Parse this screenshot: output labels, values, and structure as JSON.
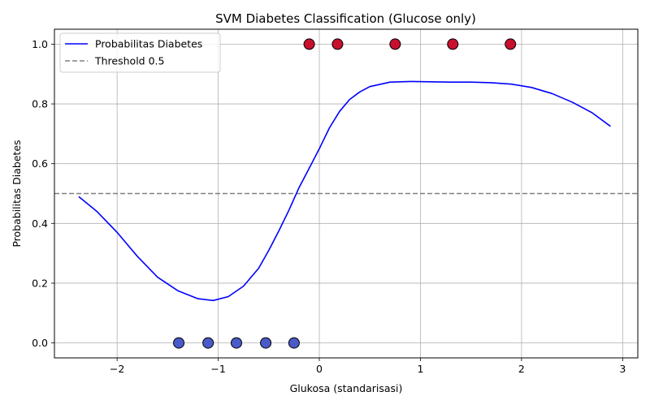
{
  "chart_data": {
    "type": "line",
    "title": "SVM Diabetes Classification (Glucose only)",
    "xlabel": "Glukosa (standarisasi)",
    "ylabel": "Probabilitas Diabetes",
    "xlim": [
      -2.62,
      3.15
    ],
    "ylim": [
      -0.05,
      1.05
    ],
    "x_ticks": [
      -2,
      -1,
      0,
      1,
      2,
      3
    ],
    "x_tick_labels": [
      "−2",
      "−1",
      "0",
      "1",
      "2",
      "3"
    ],
    "y_ticks": [
      0.0,
      0.2,
      0.4,
      0.6,
      0.8,
      1.0
    ],
    "y_tick_labels": [
      "0.0",
      "0.2",
      "0.4",
      "0.6",
      "0.8",
      "1.0"
    ],
    "grid": true,
    "legend_position": "top-left",
    "series": [
      {
        "name": "Probabilitas Diabetes",
        "kind": "line",
        "color": "#0000ff",
        "x": [
          -2.38,
          -2.2,
          -2.0,
          -1.9,
          -1.8,
          -1.6,
          -1.4,
          -1.2,
          -1.05,
          -0.9,
          -0.75,
          -0.6,
          -0.5,
          -0.4,
          -0.3,
          -0.2,
          -0.1,
          0.0,
          0.1,
          0.2,
          0.3,
          0.4,
          0.5,
          0.7,
          0.9,
          1.1,
          1.3,
          1.5,
          1.7,
          1.9,
          2.1,
          2.3,
          2.5,
          2.7,
          2.88
        ],
        "y": [
          0.49,
          0.44,
          0.37,
          0.33,
          0.29,
          0.22,
          0.175,
          0.148,
          0.142,
          0.155,
          0.19,
          0.25,
          0.31,
          0.375,
          0.445,
          0.52,
          0.585,
          0.65,
          0.72,
          0.775,
          0.815,
          0.84,
          0.858,
          0.873,
          0.875,
          0.874,
          0.873,
          0.873,
          0.871,
          0.866,
          0.855,
          0.835,
          0.806,
          0.77,
          0.725
        ]
      },
      {
        "name": "Threshold 0.5",
        "kind": "hline",
        "color": "#808080",
        "y": 0.5
      },
      {
        "kind": "scatter",
        "class": 1,
        "color": "#c8102e",
        "x": [
          -0.1,
          0.18,
          0.75,
          1.32,
          1.89
        ],
        "y": [
          1,
          1,
          1,
          1,
          1
        ]
      },
      {
        "kind": "scatter",
        "class": 0,
        "color": "#4a5ac8",
        "x": [
          -1.39,
          -1.1,
          -0.82,
          -0.53,
          -0.25
        ],
        "y": [
          0,
          0,
          0,
          0,
          0
        ]
      }
    ]
  }
}
